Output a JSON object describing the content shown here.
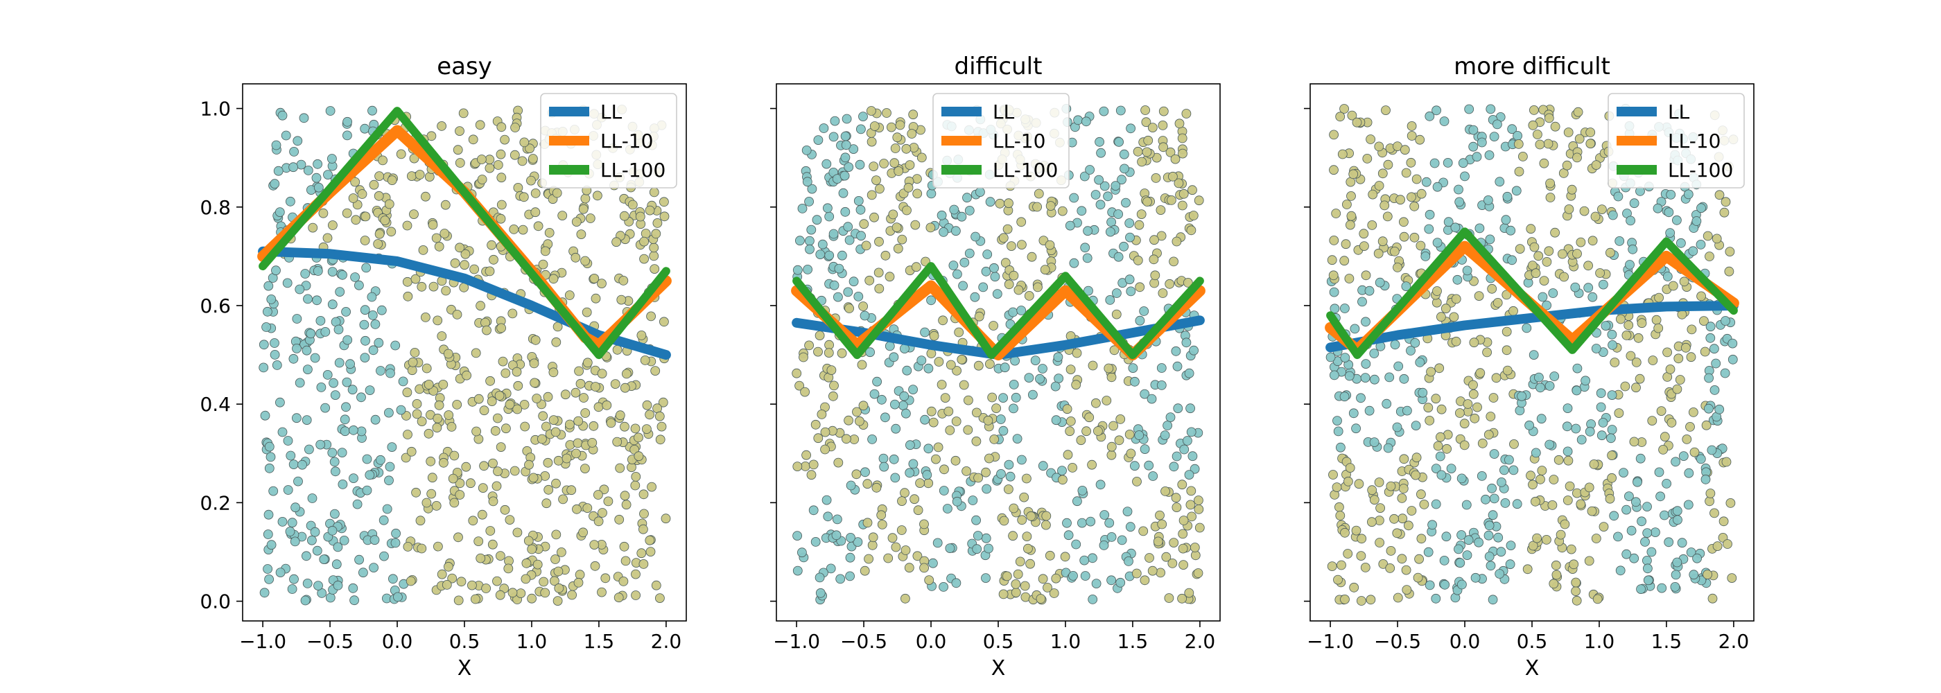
{
  "figure_title": "",
  "colors": {
    "class_a": "#86c6c6",
    "class_b": "#c9c784",
    "marker_edge": "#4a5a5a",
    "LL": "#1f77b4",
    "LL-10": "#ff7f0e",
    "LL-100": "#2ca02c"
  },
  "chart_data": [
    {
      "type": "scatter",
      "title": "easy",
      "xlabel": "X",
      "ylabel": "",
      "xlim": [
        -1.15,
        2.15
      ],
      "ylim": [
        -0.04,
        1.05
      ],
      "xticks": [
        -1.0,
        -0.5,
        0.0,
        0.5,
        1.0,
        1.5,
        2.0
      ],
      "xtick_labels": [
        "−1.0",
        "−0.5",
        "0.0",
        "0.5",
        "1.0",
        "1.5",
        "2.0"
      ],
      "yticks": [
        0.0,
        0.2,
        0.4,
        0.6,
        0.8,
        1.0
      ],
      "ytick_labels": [
        "0.0",
        "0.2",
        "0.4",
        "0.6",
        "0.8",
        "1.0"
      ],
      "show_ytick_labels": true,
      "legend": [
        "LL",
        "LL-10",
        "LL-100"
      ],
      "legend_loc": "upper right",
      "scatter_rule": "points with x < boundary shaded class_a (teal), x >= boundary class_b (olive); boundary ~ x=0 near bottom, tent peak at x=0 near top",
      "series": [
        {
          "name": "LL",
          "x": [
            -1.0,
            -0.5,
            0.0,
            0.5,
            1.0,
            1.5,
            2.0
          ],
          "y": [
            0.71,
            0.705,
            0.69,
            0.655,
            0.6,
            0.54,
            0.5
          ]
        },
        {
          "name": "LL-10",
          "x": [
            -1.0,
            -0.5,
            0.0,
            0.5,
            1.0,
            1.4,
            1.5,
            1.6,
            2.0
          ],
          "y": [
            0.7,
            0.83,
            0.955,
            0.83,
            0.67,
            0.535,
            0.52,
            0.545,
            0.65
          ]
        },
        {
          "name": "LL-100",
          "x": [
            -1.0,
            0.0,
            1.5,
            2.0
          ],
          "y": [
            0.68,
            0.995,
            0.5,
            0.67
          ]
        }
      ]
    },
    {
      "type": "scatter",
      "title": "difficult",
      "xlabel": "X",
      "ylabel": "",
      "xlim": [
        -1.15,
        2.15
      ],
      "ylim": [
        -0.04,
        1.05
      ],
      "xticks": [
        -1.0,
        -0.5,
        0.0,
        0.5,
        1.0,
        1.5,
        2.0
      ],
      "xtick_labels": [
        "−1.0",
        "−0.5",
        "0.0",
        "0.5",
        "1.0",
        "1.5",
        "2.0"
      ],
      "yticks": [
        0.0,
        0.2,
        0.4,
        0.6,
        0.8,
        1.0
      ],
      "ytick_labels": [
        "0.0",
        "0.2",
        "0.4",
        "0.6",
        "0.8",
        "1.0"
      ],
      "show_ytick_labels": false,
      "legend": [
        "LL",
        "LL-10",
        "LL-100"
      ],
      "legend_loc": "upper center",
      "scatter_rule": "checkerboard-like mixture of class_a (teal) and class_b (olive) in vertical bands",
      "series": [
        {
          "name": "LL",
          "x": [
            -1.0,
            -0.5,
            0.0,
            0.5,
            1.0,
            1.5,
            2.0
          ],
          "y": [
            0.565,
            0.545,
            0.52,
            0.5,
            0.52,
            0.545,
            0.57
          ]
        },
        {
          "name": "LL-10",
          "x": [
            -1.0,
            -0.55,
            0.0,
            0.5,
            1.0,
            1.5,
            2.0
          ],
          "y": [
            0.63,
            0.52,
            0.64,
            0.5,
            0.63,
            0.5,
            0.63
          ]
        },
        {
          "name": "LL-100",
          "x": [
            -1.0,
            -0.55,
            0.0,
            0.45,
            1.0,
            1.5,
            2.0
          ],
          "y": [
            0.65,
            0.5,
            0.68,
            0.5,
            0.66,
            0.5,
            0.65
          ]
        }
      ]
    },
    {
      "type": "scatter",
      "title": "more difficult",
      "xlabel": "X",
      "ylabel": "",
      "xlim": [
        -1.15,
        2.15
      ],
      "ylim": [
        -0.04,
        1.05
      ],
      "xticks": [
        -1.0,
        -0.5,
        0.0,
        0.5,
        1.0,
        1.5,
        2.0
      ],
      "xtick_labels": [
        "−1.0",
        "−0.5",
        "0.0",
        "0.5",
        "1.0",
        "1.5",
        "2.0"
      ],
      "yticks": [
        0.0,
        0.2,
        0.4,
        0.6,
        0.8,
        1.0
      ],
      "ytick_labels": [
        "0.0",
        "0.2",
        "0.4",
        "0.6",
        "0.8",
        "1.0"
      ],
      "show_ytick_labels": false,
      "legend": [
        "LL",
        "LL-10",
        "LL-100"
      ],
      "legend_loc": "upper right",
      "scatter_rule": "irregular mixture of class_a (teal) and class_b (olive) regions",
      "series": [
        {
          "name": "LL",
          "x": [
            -1.0,
            -0.5,
            0.0,
            0.5,
            1.0,
            1.5,
            2.0
          ],
          "y": [
            0.515,
            0.54,
            0.56,
            0.575,
            0.59,
            0.598,
            0.6
          ]
        },
        {
          "name": "LL-10",
          "x": [
            -1.0,
            -0.8,
            0.0,
            0.8,
            1.5,
            2.0
          ],
          "y": [
            0.555,
            0.51,
            0.72,
            0.53,
            0.7,
            0.605
          ]
        },
        {
          "name": "LL-100",
          "x": [
            -1.0,
            -0.8,
            0.0,
            0.8,
            1.5,
            2.0
          ],
          "y": [
            0.58,
            0.5,
            0.75,
            0.51,
            0.73,
            0.59
          ]
        }
      ]
    }
  ]
}
